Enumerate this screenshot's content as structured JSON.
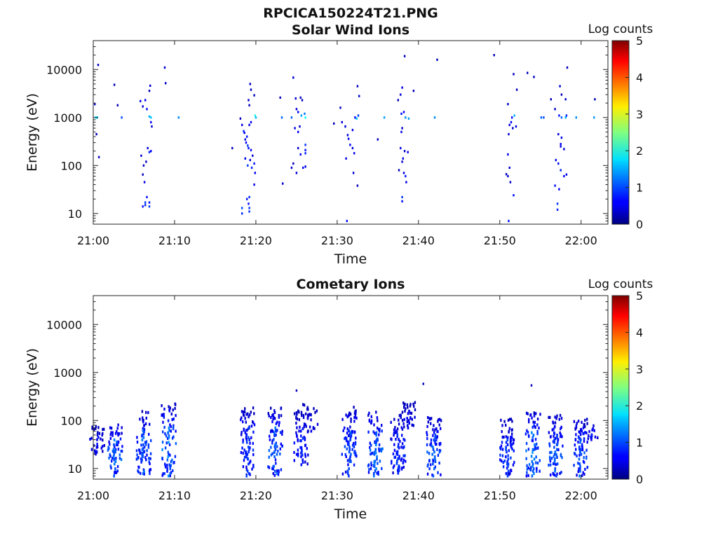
{
  "figure": {
    "title": "RPCICA150224T21.PNG"
  },
  "colorbar": {
    "label": "Log counts",
    "ticks": [
      0,
      1,
      2,
      3,
      4,
      5
    ],
    "range": [
      0,
      5
    ],
    "colormap": "jet"
  },
  "chart_data": [
    {
      "type": "heatmap",
      "title": "Solar Wind Ions",
      "xlabel": "Time",
      "ylabel": "Energy (eV)",
      "x_ticks": [
        "21:00",
        "21:10",
        "21:20",
        "21:30",
        "21:40",
        "21:50",
        "22:00"
      ],
      "x_tick_minutes": [
        0,
        10,
        20,
        30,
        40,
        50,
        60
      ],
      "xlim_minutes": [
        0,
        63.3
      ],
      "y_scale": "log",
      "y_ticks": [
        10,
        100,
        1000,
        10000
      ],
      "ylim": [
        6,
        40000
      ],
      "colorbar_label": "Log counts",
      "cells": [
        [
          0.3,
          1000,
          1.8
        ],
        [
          0.5,
          1000,
          1.6
        ],
        [
          0.2,
          1900,
          0.4
        ],
        [
          0.4,
          450,
          0.3
        ],
        [
          0.7,
          150,
          0.3
        ],
        [
          0.6,
          12500,
          0.4
        ],
        [
          2.6,
          4800,
          0.3
        ],
        [
          3.5,
          1000,
          1.0
        ],
        [
          3.0,
          1800,
          0.3
        ],
        [
          5.8,
          2200,
          0.5
        ],
        [
          6.1,
          1700,
          0.4
        ],
        [
          6.4,
          2300,
          0.6
        ],
        [
          6.6,
          1500,
          0.7
        ],
        [
          6.9,
          3600,
          0.3
        ],
        [
          7.0,
          4600,
          0.4
        ],
        [
          7.1,
          1000,
          1.6
        ],
        [
          6.9,
          1050,
          1.5
        ],
        [
          7.1,
          800,
          0.6
        ],
        [
          7.2,
          650,
          0.4
        ],
        [
          6.7,
          230,
          0.4
        ],
        [
          6.9,
          190,
          0.8
        ],
        [
          7.1,
          200,
          0.6
        ],
        [
          6.5,
          120,
          0.3
        ],
        [
          5.9,
          160,
          0.4
        ],
        [
          6.2,
          100,
          0.3
        ],
        [
          6.1,
          65,
          0.3
        ],
        [
          6.3,
          45,
          0.5
        ],
        [
          6.6,
          22,
          0.7
        ],
        [
          6.4,
          17,
          0.9
        ],
        [
          6.4,
          15,
          0.8
        ],
        [
          6.9,
          17,
          0.7
        ],
        [
          6.9,
          14,
          0.9
        ],
        [
          6.1,
          14,
          0.7
        ],
        [
          8.8,
          11000,
          0.4
        ],
        [
          8.9,
          5200,
          0.4
        ],
        [
          10.5,
          1000,
          1.3
        ],
        [
          17.1,
          230,
          0.3
        ],
        [
          18.1,
          950,
          0.3
        ],
        [
          18.3,
          700,
          0.5
        ],
        [
          18.5,
          520,
          0.8
        ],
        [
          18.6,
          480,
          0.6
        ],
        [
          18.9,
          400,
          0.7
        ],
        [
          18.7,
          350,
          0.5
        ],
        [
          18.8,
          300,
          0.6
        ],
        [
          19.0,
          260,
          0.9
        ],
        [
          19.1,
          230,
          0.7
        ],
        [
          19.4,
          210,
          0.6
        ],
        [
          19.6,
          160,
          0.4
        ],
        [
          19.3,
          130,
          0.5
        ],
        [
          19.8,
          110,
          0.7
        ],
        [
          19.0,
          100,
          0.9
        ],
        [
          19.5,
          90,
          0.8
        ],
        [
          19.9,
          70,
          0.6
        ],
        [
          18.7,
          140,
          0.5
        ],
        [
          19.1,
          2300,
          0.4
        ],
        [
          19.2,
          1800,
          0.3
        ],
        [
          19.3,
          5000,
          0.4
        ],
        [
          19.4,
          3800,
          0.3
        ],
        [
          19.8,
          2900,
          0.3
        ],
        [
          19.9,
          1100,
          2.0
        ],
        [
          20.0,
          1000,
          1.5
        ],
        [
          19.2,
          700,
          0.5
        ],
        [
          19.4,
          800,
          0.6
        ],
        [
          19.8,
          40,
          0.6
        ],
        [
          19.2,
          22,
          0.8
        ],
        [
          18.9,
          20,
          0.7
        ],
        [
          18.3,
          13,
          1.0
        ],
        [
          19.2,
          13,
          0.9
        ],
        [
          19.2,
          11,
          0.9
        ],
        [
          18.3,
          10,
          0.8
        ],
        [
          19.1,
          16,
          0.7
        ],
        [
          23.2,
          1000,
          1.1
        ],
        [
          23.0,
          2600,
          0.3
        ],
        [
          23.3,
          42,
          0.4
        ],
        [
          24.6,
          6800,
          0.4
        ],
        [
          24.9,
          2500,
          0.4
        ],
        [
          25.5,
          2600,
          0.3
        ],
        [
          25.7,
          2300,
          0.3
        ],
        [
          25.0,
          1500,
          0.5
        ],
        [
          25.2,
          1300,
          0.5
        ],
        [
          24.4,
          1000,
          1.1
        ],
        [
          25.6,
          1100,
          1.4
        ],
        [
          26.1,
          1000,
          1.9
        ],
        [
          26.0,
          1200,
          1.2
        ],
        [
          25.4,
          650,
          0.4
        ],
        [
          24.8,
          600,
          0.6
        ],
        [
          25.2,
          500,
          0.6
        ],
        [
          26.1,
          270,
          0.9
        ],
        [
          26.1,
          210,
          0.7
        ],
        [
          26.1,
          180,
          0.8
        ],
        [
          25.8,
          90,
          0.6
        ],
        [
          26.1,
          95,
          0.5
        ],
        [
          24.4,
          90,
          0.4
        ],
        [
          25.0,
          70,
          0.4
        ],
        [
          24.6,
          110,
          0.3
        ],
        [
          25.2,
          230,
          0.4
        ],
        [
          25.5,
          170,
          0.5
        ],
        [
          29.6,
          750,
          0.3
        ],
        [
          30.4,
          1600,
          0.3
        ],
        [
          30.6,
          800,
          0.4
        ],
        [
          31.0,
          650,
          0.4
        ],
        [
          31.3,
          430,
          0.5
        ],
        [
          31.4,
          360,
          0.6
        ],
        [
          31.9,
          550,
          0.5
        ],
        [
          32.2,
          1000,
          0.6
        ],
        [
          32.4,
          950,
          1.6
        ],
        [
          32.6,
          1100,
          0.9
        ],
        [
          32.5,
          4500,
          0.3
        ],
        [
          32.7,
          2800,
          0.4
        ],
        [
          31.6,
          270,
          0.6
        ],
        [
          31.9,
          230,
          0.5
        ],
        [
          32.1,
          180,
          0.6
        ],
        [
          31.1,
          140,
          0.5
        ],
        [
          32.0,
          70,
          0.4
        ],
        [
          32.5,
          38,
          0.3
        ],
        [
          31.2,
          7,
          0.7
        ],
        [
          35.0,
          350,
          0.3
        ],
        [
          35.8,
          1000,
          1.4
        ],
        [
          37.5,
          2300,
          0.3
        ],
        [
          37.8,
          3000,
          0.4
        ],
        [
          38.0,
          4200,
          0.5
        ],
        [
          37.9,
          1200,
          0.7
        ],
        [
          38.2,
          1300,
          0.6
        ],
        [
          38.4,
          1000,
          1.3
        ],
        [
          38.8,
          950,
          1.4
        ],
        [
          38.0,
          600,
          0.4
        ],
        [
          37.9,
          500,
          0.5
        ],
        [
          37.8,
          230,
          0.5
        ],
        [
          38.3,
          200,
          0.4
        ],
        [
          38.7,
          190,
          0.6
        ],
        [
          38.1,
          140,
          0.5
        ],
        [
          38.0,
          120,
          0.4
        ],
        [
          37.6,
          80,
          0.3
        ],
        [
          38.2,
          70,
          0.5
        ],
        [
          38.4,
          60,
          0.7
        ],
        [
          38.5,
          45,
          0.5
        ],
        [
          38.0,
          22,
          0.9
        ],
        [
          38.0,
          18,
          0.7
        ],
        [
          38.3,
          19000,
          0.3
        ],
        [
          39.4,
          3600,
          0.3
        ],
        [
          42.0,
          1000,
          1.3
        ],
        [
          42.3,
          16000,
          0.3
        ],
        [
          49.3,
          20000,
          0.3
        ],
        [
          51.0,
          1900,
          0.3
        ],
        [
          51.5,
          1000,
          0.7
        ],
        [
          51.8,
          1100,
          1.5
        ],
        [
          51.4,
          800,
          0.6
        ],
        [
          51.2,
          700,
          0.5
        ],
        [
          51.6,
          600,
          0.4
        ],
        [
          52.0,
          650,
          0.5
        ],
        [
          51.1,
          450,
          0.4
        ],
        [
          51.0,
          170,
          0.5
        ],
        [
          51.2,
          90,
          0.4
        ],
        [
          50.8,
          66,
          0.3
        ],
        [
          51.0,
          60,
          0.4
        ],
        [
          51.3,
          45,
          0.4
        ],
        [
          51.7,
          24,
          0.7
        ],
        [
          51.1,
          7,
          0.7
        ],
        [
          51.7,
          8000,
          0.3
        ],
        [
          52.1,
          3800,
          0.3
        ],
        [
          53.4,
          8500,
          0.3
        ],
        [
          54.2,
          7000,
          0.3
        ],
        [
          55.1,
          1000,
          1.1
        ],
        [
          55.4,
          1000,
          1.0
        ],
        [
          56.3,
          2400,
          0.3
        ],
        [
          56.8,
          1500,
          0.4
        ],
        [
          57.3,
          1100,
          0.7
        ],
        [
          57.6,
          1000,
          1.1
        ],
        [
          58.1,
          1000,
          1.5
        ],
        [
          58.2,
          1100,
          0.8
        ],
        [
          57.4,
          4500,
          0.4
        ],
        [
          57.6,
          3000,
          0.3
        ],
        [
          58.1,
          2400,
          0.4
        ],
        [
          58.3,
          11000,
          0.3
        ],
        [
          57.2,
          450,
          0.4
        ],
        [
          57.6,
          380,
          0.5
        ],
        [
          57.5,
          280,
          0.6
        ],
        [
          57.5,
          250,
          0.5
        ],
        [
          57.9,
          220,
          0.4
        ],
        [
          56.9,
          130,
          0.6
        ],
        [
          57.2,
          110,
          0.7
        ],
        [
          57.5,
          80,
          0.8
        ],
        [
          58.2,
          65,
          0.5
        ],
        [
          57.9,
          60,
          0.6
        ],
        [
          56.8,
          38,
          0.7
        ],
        [
          57.3,
          32,
          0.6
        ],
        [
          57.1,
          16,
          0.9
        ],
        [
          57.1,
          12,
          0.8
        ],
        [
          59.4,
          1000,
          1.3
        ],
        [
          61.6,
          1000,
          1.4
        ],
        [
          61.7,
          2400,
          0.3
        ]
      ]
    },
    {
      "type": "heatmap",
      "title": "Cometary Ions",
      "xlabel": "Time",
      "ylabel": "Energy (eV)",
      "x_ticks": [
        "21:00",
        "21:10",
        "21:20",
        "21:30",
        "21:40",
        "21:50",
        "22:00"
      ],
      "x_tick_minutes": [
        0,
        10,
        20,
        30,
        40,
        50,
        60
      ],
      "xlim_minutes": [
        0,
        63.3
      ],
      "y_scale": "log",
      "y_ticks": [
        10,
        100,
        1000,
        10000
      ],
      "ylim": [
        6,
        40000
      ],
      "colorbar_label": "Log counts",
      "bursts": [
        [
          0.5,
          20,
          75,
          0.7
        ],
        [
          2.7,
          7,
          90,
          1.3
        ],
        [
          6.2,
          7,
          170,
          1.2
        ],
        [
          9.3,
          7,
          230,
          1.4
        ],
        [
          19.0,
          7,
          220,
          1.0
        ],
        [
          22.4,
          7,
          190,
          1.2
        ],
        [
          25.6,
          12,
          160,
          0.9
        ],
        [
          26.7,
          60,
          220,
          0.6
        ],
        [
          31.5,
          7,
          190,
          1.1
        ],
        [
          34.7,
          7,
          150,
          1.3
        ],
        [
          37.5,
          8,
          150,
          1.0
        ],
        [
          38.8,
          70,
          240,
          0.6
        ],
        [
          41.9,
          7,
          120,
          1.2
        ],
        [
          50.9,
          7,
          110,
          1.0
        ],
        [
          54.1,
          7,
          150,
          1.4
        ],
        [
          56.9,
          7,
          130,
          1.2
        ],
        [
          59.9,
          7,
          110,
          1.2
        ],
        [
          61.2,
          40,
          90,
          0.8
        ]
      ],
      "isolated": [
        [
          25.0,
          420,
          0.3
        ],
        [
          40.6,
          580,
          0.3
        ],
        [
          53.9,
          540,
          0.3
        ]
      ]
    }
  ]
}
